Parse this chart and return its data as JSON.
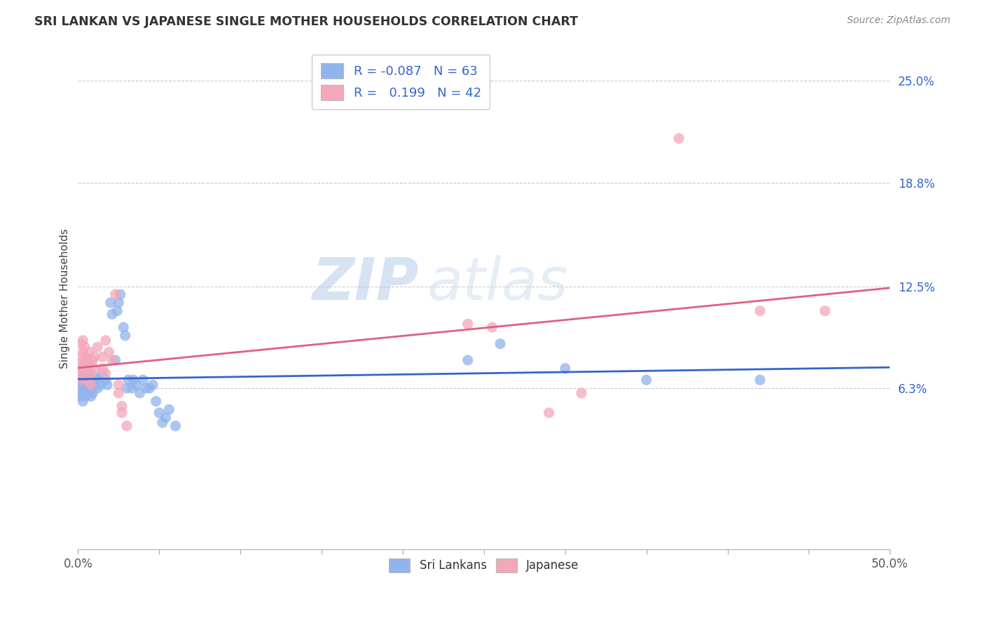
{
  "title": "SRI LANKAN VS JAPANESE SINGLE MOTHER HOUSEHOLDS CORRELATION CHART",
  "source": "Source: ZipAtlas.com",
  "ylabel": "Single Mother Households",
  "yticks": [
    "6.3%",
    "12.5%",
    "18.8%",
    "25.0%"
  ],
  "ytick_vals": [
    0.063,
    0.125,
    0.188,
    0.25
  ],
  "xlim": [
    0.0,
    0.5
  ],
  "ylim": [
    -0.035,
    0.27
  ],
  "sri_color": "#92B4EC",
  "jp_color": "#F4A7B9",
  "sri_line_color": "#3366CC",
  "jp_line_color": "#E06080",
  "watermark_zip": "ZIP",
  "watermark_atlas": "atlas",
  "legend_r_sri": "R = -0.087",
  "legend_n_sri": "N = 63",
  "legend_r_jp": "R =   0.199",
  "legend_n_jp": "N = 42",
  "sri_lankans": [
    [
      0.001,
      0.073
    ],
    [
      0.001,
      0.068
    ],
    [
      0.001,
      0.062
    ],
    [
      0.001,
      0.058
    ],
    [
      0.002,
      0.075
    ],
    [
      0.002,
      0.063
    ],
    [
      0.002,
      0.058
    ],
    [
      0.002,
      0.068
    ],
    [
      0.003,
      0.06
    ],
    [
      0.003,
      0.065
    ],
    [
      0.003,
      0.07
    ],
    [
      0.003,
      0.055
    ],
    [
      0.004,
      0.063
    ],
    [
      0.004,
      0.068
    ],
    [
      0.004,
      0.06
    ],
    [
      0.005,
      0.065
    ],
    [
      0.005,
      0.058
    ],
    [
      0.005,
      0.072
    ],
    [
      0.006,
      0.063
    ],
    [
      0.006,
      0.06
    ],
    [
      0.007,
      0.068
    ],
    [
      0.007,
      0.065
    ],
    [
      0.008,
      0.063
    ],
    [
      0.008,
      0.058
    ],
    [
      0.009,
      0.06
    ],
    [
      0.009,
      0.068
    ],
    [
      0.01,
      0.065
    ],
    [
      0.01,
      0.07
    ],
    [
      0.012,
      0.063
    ],
    [
      0.012,
      0.068
    ],
    [
      0.014,
      0.065
    ],
    [
      0.015,
      0.072
    ],
    [
      0.017,
      0.068
    ],
    [
      0.018,
      0.065
    ],
    [
      0.02,
      0.115
    ],
    [
      0.021,
      0.108
    ],
    [
      0.023,
      0.08
    ],
    [
      0.024,
      0.11
    ],
    [
      0.025,
      0.115
    ],
    [
      0.026,
      0.12
    ],
    [
      0.028,
      0.1
    ],
    [
      0.029,
      0.095
    ],
    [
      0.03,
      0.063
    ],
    [
      0.031,
      0.068
    ],
    [
      0.033,
      0.063
    ],
    [
      0.034,
      0.068
    ],
    [
      0.036,
      0.065
    ],
    [
      0.038,
      0.06
    ],
    [
      0.04,
      0.068
    ],
    [
      0.042,
      0.063
    ],
    [
      0.044,
      0.063
    ],
    [
      0.046,
      0.065
    ],
    [
      0.048,
      0.055
    ],
    [
      0.05,
      0.048
    ],
    [
      0.052,
      0.042
    ],
    [
      0.054,
      0.045
    ],
    [
      0.056,
      0.05
    ],
    [
      0.06,
      0.04
    ],
    [
      0.24,
      0.08
    ],
    [
      0.26,
      0.09
    ],
    [
      0.3,
      0.075
    ],
    [
      0.35,
      0.068
    ],
    [
      0.42,
      0.068
    ]
  ],
  "japanese": [
    [
      0.001,
      0.075
    ],
    [
      0.001,
      0.068
    ],
    [
      0.001,
      0.078
    ],
    [
      0.002,
      0.09
    ],
    [
      0.002,
      0.082
    ],
    [
      0.002,
      0.072
    ],
    [
      0.003,
      0.085
    ],
    [
      0.003,
      0.092
    ],
    [
      0.004,
      0.078
    ],
    [
      0.004,
      0.088
    ],
    [
      0.005,
      0.082
    ],
    [
      0.005,
      0.075
    ],
    [
      0.005,
      0.068
    ],
    [
      0.006,
      0.08
    ],
    [
      0.006,
      0.075
    ],
    [
      0.007,
      0.085
    ],
    [
      0.007,
      0.078
    ],
    [
      0.008,
      0.072
    ],
    [
      0.008,
      0.065
    ],
    [
      0.009,
      0.08
    ],
    [
      0.01,
      0.075
    ],
    [
      0.01,
      0.082
    ],
    [
      0.012,
      0.088
    ],
    [
      0.015,
      0.082
    ],
    [
      0.015,
      0.075
    ],
    [
      0.017,
      0.092
    ],
    [
      0.017,
      0.072
    ],
    [
      0.019,
      0.085
    ],
    [
      0.021,
      0.08
    ],
    [
      0.023,
      0.12
    ],
    [
      0.025,
      0.065
    ],
    [
      0.025,
      0.06
    ],
    [
      0.027,
      0.048
    ],
    [
      0.027,
      0.052
    ],
    [
      0.03,
      0.04
    ],
    [
      0.24,
      0.102
    ],
    [
      0.255,
      0.1
    ],
    [
      0.29,
      0.048
    ],
    [
      0.31,
      0.06
    ],
    [
      0.37,
      0.215
    ],
    [
      0.42,
      0.11
    ],
    [
      0.46,
      0.11
    ]
  ]
}
